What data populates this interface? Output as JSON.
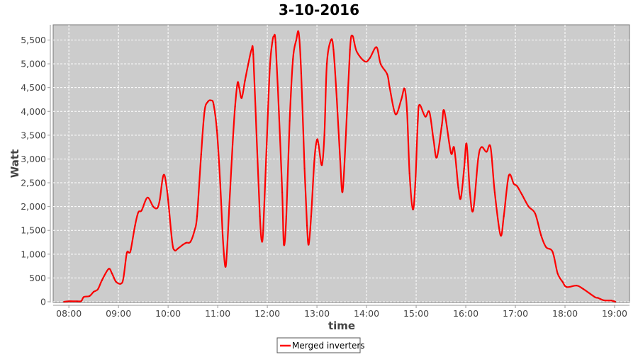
{
  "chart_data": {
    "type": "line",
    "title": "3-10-2016",
    "xlabel": "time",
    "ylabel": "Watt",
    "xlim": [
      "07:41",
      "19:18"
    ],
    "ylim": [
      0,
      5820
    ],
    "x_ticks": [
      "08:00",
      "09:00",
      "10:00",
      "11:00",
      "12:00",
      "13:00",
      "14:00",
      "15:00",
      "16:00",
      "17:00",
      "18:00",
      "19:00"
    ],
    "y_ticks": [
      0,
      500,
      1000,
      1500,
      2000,
      2500,
      3000,
      3500,
      4000,
      4500,
      5000,
      5500
    ],
    "grid": true,
    "legend_placement": "bottom",
    "colors": {
      "series": "#ff0000",
      "plot_background": "#cccccc",
      "grid": "#ffffff"
    },
    "series": [
      {
        "name": "Merged inverters",
        "x": [
          "07:54",
          "08:00",
          "08:10",
          "08:15",
          "08:18",
          "08:25",
          "08:30",
          "08:35",
          "08:40",
          "08:48",
          "08:52",
          "08:57",
          "09:03",
          "09:06",
          "09:10",
          "09:13",
          "09:15",
          "09:20",
          "09:24",
          "09:28",
          "09:35",
          "09:42",
          "09:47",
          "09:50",
          "09:53",
          "09:55",
          "09:57",
          "10:00",
          "10:05",
          "10:08",
          "10:12",
          "10:18",
          "10:22",
          "10:27",
          "10:32",
          "10:35",
          "10:40",
          "10:44",
          "10:48",
          "10:52",
          "10:55",
          "10:59",
          "11:03",
          "11:06",
          "11:09",
          "11:11",
          "11:14",
          "11:18",
          "11:21",
          "11:24",
          "11:26",
          "11:29",
          "11:33",
          "11:37",
          "11:41",
          "11:43",
          "11:47",
          "11:51",
          "11:53",
          "11:55",
          "11:59",
          "12:03",
          "12:06",
          "12:08",
          "12:10",
          "12:14",
          "12:18",
          "12:20",
          "12:23",
          "12:27",
          "12:31",
          "12:35",
          "12:38",
          "12:41",
          "12:45",
          "12:48",
          "12:50",
          "12:53",
          "12:57",
          "13:00",
          "13:02",
          "13:06",
          "13:09",
          "13:12",
          "13:17",
          "13:20",
          "13:24",
          "13:28",
          "13:31",
          "13:35",
          "13:40",
          "13:43",
          "13:48",
          "13:58",
          "14:04",
          "14:12",
          "14:17",
          "14:25",
          "14:28",
          "14:35",
          "14:42",
          "14:46",
          "14:49",
          "14:52",
          "14:56",
          "14:59",
          "15:02",
          "15:04",
          "15:11",
          "15:16",
          "15:21",
          "15:25",
          "15:31",
          "15:34",
          "15:42",
          "15:46",
          "15:51",
          "15:54",
          "15:58",
          "16:01",
          "16:05",
          "16:09",
          "16:15",
          "16:19",
          "16:25",
          "16:30",
          "16:35",
          "16:42",
          "16:46",
          "16:52",
          "16:58",
          "17:02",
          "17:08",
          "17:16",
          "17:24",
          "17:31",
          "17:37",
          "17:45",
          "17:51",
          "17:57",
          "18:02",
          "18:14",
          "18:22",
          "18:36",
          "18:40",
          "18:47",
          "18:56",
          "19:01"
        ],
        "y": [
          0,
          10,
          10,
          15,
          100,
          120,
          210,
          260,
          450,
          690,
          600,
          420,
          380,
          500,
          1020,
          1030,
          1100,
          1600,
          1880,
          1920,
          2190,
          2000,
          1970,
          2150,
          2550,
          2670,
          2550,
          2150,
          1250,
          1080,
          1120,
          1200,
          1240,
          1260,
          1500,
          1800,
          3100,
          4000,
          4200,
          4230,
          4150,
          3600,
          2500,
          1400,
          750,
          1000,
          2000,
          3300,
          4100,
          4600,
          4500,
          4280,
          4650,
          5000,
          5300,
          5200,
          3500,
          1800,
          1300,
          1500,
          3200,
          4900,
          5450,
          5580,
          5450,
          4000,
          2300,
          1200,
          1800,
          3800,
          5100,
          5500,
          5650,
          4800,
          2800,
          1600,
          1200,
          1800,
          3000,
          3400,
          3300,
          2870,
          3500,
          5000,
          5500,
          5300,
          4260,
          3000,
          2310,
          3500,
          5300,
          5590,
          5260,
          5050,
          5120,
          5350,
          5000,
          4780,
          4500,
          3940,
          4250,
          4480,
          4000,
          2700,
          1940,
          2500,
          3800,
          4140,
          3890,
          3990,
          3400,
          3030,
          3700,
          4010,
          3130,
          3230,
          2400,
          2175,
          2800,
          3320,
          2300,
          1920,
          3000,
          3250,
          3150,
          3250,
          2300,
          1400,
          1800,
          2650,
          2480,
          2430,
          2250,
          2000,
          1850,
          1400,
          1150,
          1050,
          600,
          420,
          310,
          340,
          270,
          100,
          80,
          30,
          25,
          0
        ]
      }
    ]
  }
}
